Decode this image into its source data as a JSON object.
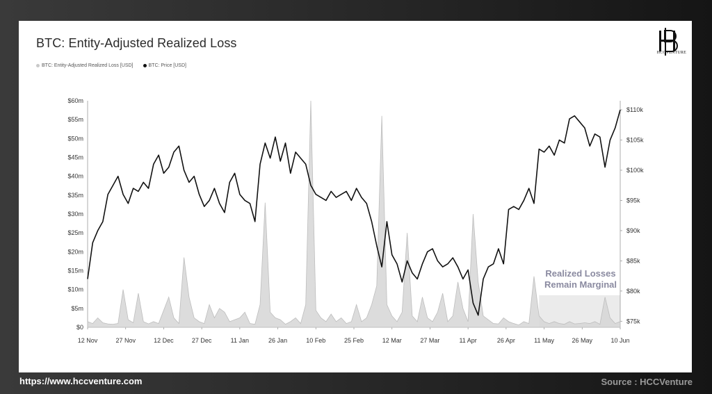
{
  "footer": {
    "url": "https://www.hccventure.com",
    "source": "Source : HCCVenture"
  },
  "logo": {
    "text": "HCCVENTURE"
  },
  "chart_data": {
    "type": "line",
    "title": "BTC: Entity-Adjusted Realized Loss",
    "legend": [
      "BTC: Entity-Adjusted Realized Loss [USD]",
      "BTC: Price [USD]"
    ],
    "legend_placement": "top-left",
    "x_ticks": [
      "12 Nov",
      "27 Nov",
      "12 Dec",
      "27 Dec",
      "11 Jan",
      "26 Jan",
      "10 Feb",
      "25 Feb",
      "12 Mar",
      "27 Mar",
      "11 Apr",
      "26 Apr",
      "11 May",
      "26 May",
      "10 Jun"
    ],
    "y_left_ticks": [
      "$0",
      "$5m",
      "$10m",
      "$15m",
      "$20m",
      "$25m",
      "$30m",
      "$35m",
      "$40m",
      "$45m",
      "$50m",
      "$55m",
      "$60m"
    ],
    "y_right_ticks": [
      "$75k",
      "$80k",
      "$85k",
      "$90k",
      "$95k",
      "$100k",
      "$105k",
      "$110k"
    ],
    "ylim_left": [
      0,
      60000000
    ],
    "ylim_right": [
      74000,
      111500
    ],
    "x_range_days": [
      0,
      210
    ],
    "grid": false,
    "annotation": [
      "Realized Losses",
      "Remain Marginal"
    ],
    "highlight_range_days": [
      178,
      210
    ],
    "series": [
      {
        "name": "BTC: Price [USD]",
        "color": "#111111",
        "x": [
          0,
          2,
          4,
          6,
          8,
          10,
          12,
          14,
          16,
          18,
          20,
          22,
          24,
          26,
          28,
          30,
          32,
          34,
          36,
          38,
          40,
          42,
          44,
          46,
          48,
          50,
          52,
          54,
          56,
          58,
          60,
          62,
          64,
          66,
          68,
          70,
          72,
          74,
          76,
          78,
          80,
          82,
          84,
          86,
          88,
          90,
          92,
          94,
          96,
          98,
          100,
          102,
          104,
          106,
          108,
          110,
          112,
          114,
          116,
          118,
          120,
          122,
          124,
          126,
          128,
          130,
          132,
          134,
          136,
          138,
          140,
          142,
          144,
          146,
          148,
          150,
          152,
          154,
          156,
          158,
          160,
          162,
          164,
          166,
          168,
          170,
          172,
          174,
          176,
          178,
          180,
          182,
          184,
          186,
          188,
          190,
          192,
          194,
          196,
          198,
          200,
          202,
          204,
          206,
          208,
          210
        ],
        "values": [
          82000,
          88000,
          90000,
          91500,
          96000,
          97500,
          99000,
          96000,
          94500,
          97000,
          96500,
          98000,
          97000,
          101000,
          102500,
          99500,
          100500,
          103000,
          104000,
          100000,
          98000,
          99000,
          96000,
          94000,
          95000,
          97000,
          94500,
          93000,
          98000,
          99500,
          96000,
          95000,
          94500,
          91500,
          101000,
          104500,
          102000,
          105500,
          101500,
          104500,
          99500,
          103000,
          102000,
          101000,
          97500,
          96000,
          95500,
          95000,
          96500,
          95500,
          96000,
          96500,
          95000,
          97000,
          95500,
          94500,
          91500,
          87500,
          84000,
          91500,
          86000,
          84500,
          81500,
          85000,
          83000,
          82000,
          84500,
          86500,
          87000,
          85000,
          84000,
          84500,
          85500,
          84000,
          82000,
          83500,
          78000,
          76000,
          82000,
          84000,
          84500,
          87000,
          84500,
          93500,
          94000,
          93500,
          95000,
          97000,
          94500,
          103500,
          103000,
          104000,
          102500,
          105000,
          104500,
          108500,
          109000,
          108000,
          107000,
          104000,
          106000,
          105500,
          100500,
          105000,
          107000,
          110000
        ]
      },
      {
        "name": "BTC: Entity-Adjusted Realized Loss [USD]",
        "color": "#c9c9c9",
        "x": [
          0,
          2,
          4,
          6,
          8,
          10,
          12,
          14,
          16,
          18,
          20,
          22,
          24,
          26,
          28,
          30,
          32,
          34,
          36,
          38,
          40,
          42,
          44,
          46,
          48,
          50,
          52,
          54,
          56,
          58,
          60,
          62,
          64,
          66,
          68,
          70,
          72,
          74,
          76,
          78,
          80,
          82,
          84,
          86,
          88,
          90,
          92,
          94,
          96,
          98,
          100,
          102,
          104,
          106,
          108,
          110,
          112,
          114,
          116,
          118,
          120,
          122,
          124,
          126,
          128,
          130,
          132,
          134,
          136,
          138,
          140,
          142,
          144,
          146,
          148,
          150,
          152,
          154,
          156,
          158,
          160,
          162,
          164,
          166,
          168,
          170,
          172,
          174,
          176,
          178,
          180,
          182,
          184,
          186,
          188,
          190,
          192,
          194,
          196,
          198,
          200,
          202,
          204,
          206,
          208,
          210
        ],
        "values": [
          1500000,
          1000000,
          2500000,
          1200000,
          900000,
          800000,
          1000000,
          10000000,
          2000000,
          1200000,
          9000000,
          1500000,
          900000,
          1500000,
          1000000,
          4500000,
          8000000,
          2500000,
          1000000,
          18500000,
          8000000,
          2500000,
          1500000,
          1000000,
          6000000,
          2500000,
          5000000,
          4000000,
          1500000,
          2000000,
          2500000,
          4000000,
          1000000,
          800000,
          6000000,
          33000000,
          4000000,
          2500000,
          2000000,
          800000,
          1500000,
          2500000,
          1000000,
          6000000,
          60000000,
          4500000,
          2500000,
          1500000,
          3500000,
          1500000,
          2500000,
          1000000,
          1500000,
          6000000,
          1500000,
          2500000,
          6000000,
          11000000,
          56000000,
          6000000,
          3000000,
          1500000,
          4000000,
          25000000,
          3000000,
          1500000,
          8000000,
          2500000,
          1500000,
          4000000,
          9000000,
          1500000,
          3000000,
          12000000,
          5000000,
          1500000,
          30000000,
          12000000,
          3000000,
          2000000,
          1000000,
          900000,
          2500000,
          1500000,
          1000000,
          600000,
          1500000,
          1000000,
          13500000,
          3000000,
          1500000,
          1000000,
          1500000,
          1000000,
          800000,
          1500000,
          900000,
          1000000,
          1200000,
          1000000,
          1500000,
          800000,
          8000000,
          2500000,
          1000000,
          1500000
        ]
      }
    ]
  }
}
